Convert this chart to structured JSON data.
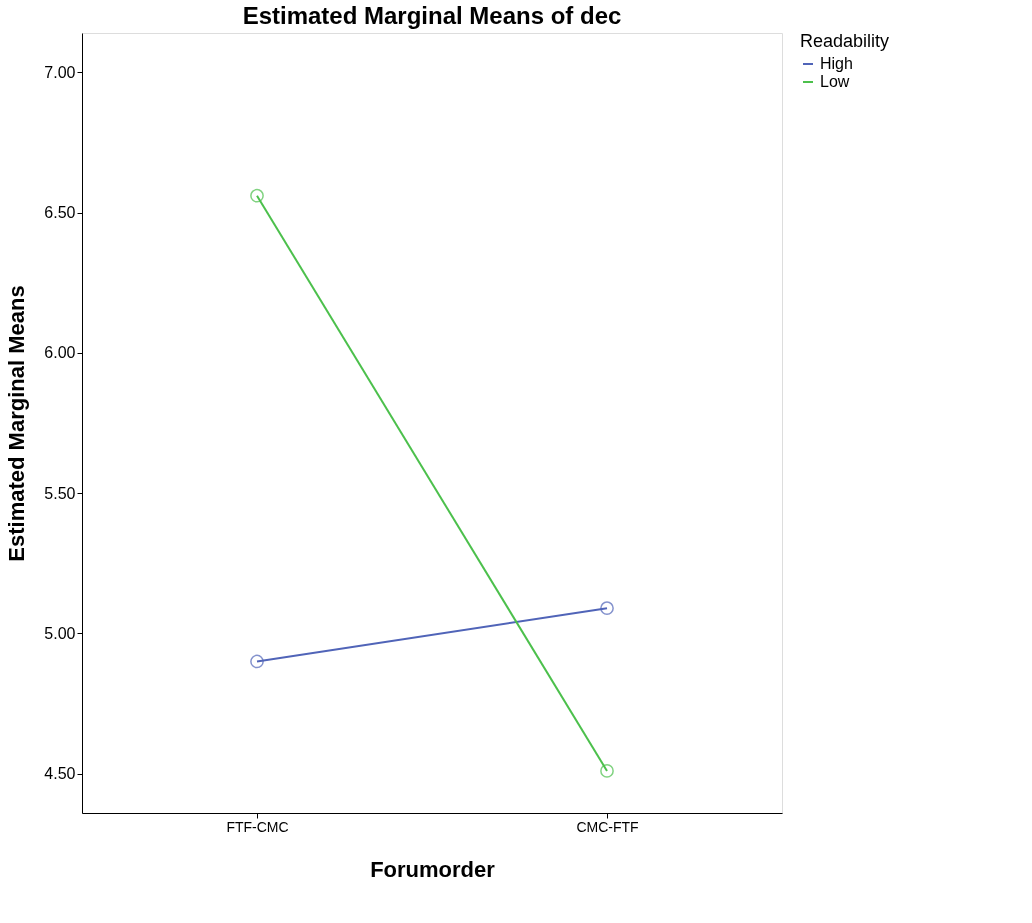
{
  "chart_data": {
    "type": "line",
    "title": "Estimated Marginal Means of dec",
    "xlabel": "Forumorder",
    "ylabel": "Estimated Marginal Means",
    "legend_title": "Readability",
    "categories": [
      "FTF-CMC",
      "CMC-FTF"
    ],
    "series": [
      {
        "name": "High",
        "color": "#5064b8",
        "values": [
          4.9,
          5.09
        ]
      },
      {
        "name": "Low",
        "color": "#4cc04c",
        "values": [
          6.56,
          4.51
        ]
      }
    ],
    "ylim": [
      4.36,
      7.14
    ],
    "yticks": [
      {
        "value": 4.5,
        "label": "4.50"
      },
      {
        "value": 5.0,
        "label": "5.00"
      },
      {
        "value": 5.5,
        "label": "5.50"
      },
      {
        "value": 6.0,
        "label": "6.00"
      },
      {
        "value": 6.5,
        "label": "6.50"
      },
      {
        "value": 7.0,
        "label": "7.00"
      }
    ],
    "marker": "circle",
    "legend": "top right",
    "grid": false
  }
}
